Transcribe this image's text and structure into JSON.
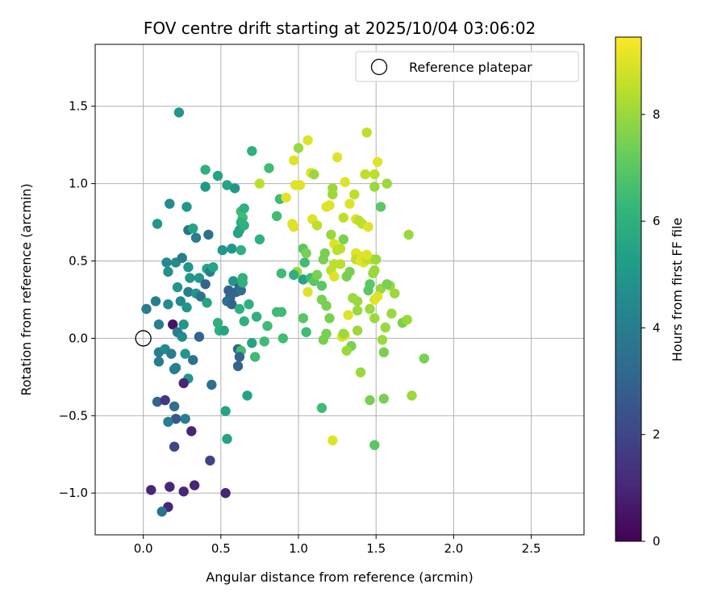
{
  "chart_data": {
    "type": "scatter",
    "title": "FOV centre drift starting at 2025/10/04 03:06:02",
    "xlabel": "Angular distance from reference (arcmin)",
    "ylabel": "Rotation from reference (arcmin)",
    "xlim": [
      -0.31,
      2.84
    ],
    "ylim": [
      -1.27,
      1.9
    ],
    "xticks": [
      0.0,
      0.5,
      1.0,
      1.5,
      2.0,
      2.5
    ],
    "xtick_labels": [
      "0.0",
      "0.5",
      "1.0",
      "1.5",
      "2.0",
      "2.5"
    ],
    "yticks": [
      -1.0,
      -0.5,
      0.0,
      0.5,
      1.0,
      1.5
    ],
    "ytick_labels": [
      "−1.0",
      "−0.5",
      "0.0",
      "0.5",
      "1.0",
      "1.5"
    ],
    "grid": true,
    "legend": {
      "label": "Reference platepar",
      "location": "top-right",
      "marker": "open-circle"
    },
    "reference_point": {
      "x": 0.0,
      "y": 0.0
    },
    "colorbar": {
      "label": "Hours from first FF file",
      "range": [
        0,
        9.45
      ],
      "ticks": [
        0,
        2,
        4,
        6,
        8
      ],
      "tick_labels": [
        "0",
        "2",
        "4",
        "6",
        "8"
      ],
      "colormap": "viridis",
      "color_stops": [
        "#440154",
        "#482878",
        "#3e4989",
        "#31688e",
        "#26828e",
        "#1f9e89",
        "#35b779",
        "#6ece58",
        "#b5de2b",
        "#fde725"
      ]
    },
    "series": [
      {
        "name": "Hours from first FF file",
        "points": [
          [
            0.23,
            1.46,
            5.0
          ],
          [
            0.09,
            0.74,
            5.0
          ],
          [
            0.17,
            0.87,
            4.5
          ],
          [
            0.28,
            0.85,
            5.0
          ],
          [
            0.29,
            0.7,
            3.5
          ],
          [
            0.32,
            0.71,
            5.5
          ],
          [
            0.34,
            0.65,
            4.0
          ],
          [
            0.15,
            0.49,
            4.5
          ],
          [
            0.16,
            0.43,
            4.8
          ],
          [
            0.21,
            0.49,
            4.5
          ],
          [
            0.25,
            0.52,
            4.0
          ],
          [
            0.29,
            0.46,
            5.0
          ],
          [
            0.22,
            0.33,
            5.0
          ],
          [
            0.3,
            0.39,
            5.0
          ],
          [
            0.36,
            0.39,
            5.0
          ],
          [
            0.4,
            0.35,
            3.0
          ],
          [
            0.41,
            0.45,
            5.5
          ],
          [
            0.43,
            0.43,
            4.0
          ],
          [
            0.45,
            0.46,
            5.5
          ],
          [
            0.08,
            0.24,
            4.0
          ],
          [
            0.16,
            0.22,
            4.5
          ],
          [
            0.24,
            0.24,
            4.5
          ],
          [
            0.28,
            0.2,
            5.0
          ],
          [
            0.29,
            0.3,
            4.0
          ],
          [
            0.34,
            0.29,
            5.0
          ],
          [
            0.37,
            0.27,
            3.5
          ],
          [
            0.41,
            0.23,
            5.5
          ],
          [
            0.02,
            0.19,
            4.0
          ],
          [
            0.1,
            0.09,
            4.0
          ],
          [
            0.19,
            0.09,
            0.5
          ],
          [
            0.22,
            0.04,
            5.5
          ],
          [
            0.26,
            0.09,
            5.0
          ],
          [
            0.22,
            0.04,
            4.0
          ],
          [
            0.36,
            0.01,
            3.0
          ],
          [
            0.25,
            0.01,
            4.5
          ],
          [
            0.1,
            -0.09,
            4.0
          ],
          [
            0.14,
            -0.07,
            4.5
          ],
          [
            0.18,
            -0.1,
            4.0
          ],
          [
            0.21,
            -0.19,
            4.5
          ],
          [
            0.1,
            -0.15,
            4.0
          ],
          [
            0.2,
            -0.2,
            4.0
          ],
          [
            0.27,
            -0.1,
            5.0
          ],
          [
            0.29,
            -0.26,
            5.0
          ],
          [
            0.32,
            -0.14,
            3.5
          ],
          [
            0.26,
            -0.29,
            1.0
          ],
          [
            0.44,
            -0.3,
            3.5
          ],
          [
            0.09,
            -0.41,
            3.0
          ],
          [
            0.14,
            -0.4,
            1.5
          ],
          [
            0.2,
            -0.44,
            3.5
          ],
          [
            0.21,
            -0.52,
            2.5
          ],
          [
            0.16,
            -0.54,
            4.0
          ],
          [
            0.27,
            -0.52,
            4.0
          ],
          [
            0.31,
            -0.6,
            1.0
          ],
          [
            0.2,
            -0.7,
            2.0
          ],
          [
            0.43,
            -0.79,
            2.0
          ],
          [
            0.05,
            -0.98,
            1.0
          ],
          [
            0.17,
            -0.96,
            1.0
          ],
          [
            0.26,
            -0.99,
            1.0
          ],
          [
            0.33,
            -0.95,
            1.0
          ],
          [
            0.16,
            -1.09,
            1.0
          ],
          [
            0.12,
            -1.12,
            3.5
          ],
          [
            0.53,
            -1.0,
            1.0
          ],
          [
            0.4,
            1.09,
            6.0
          ],
          [
            0.4,
            0.98,
            5.0
          ],
          [
            0.48,
            1.05,
            5.5
          ],
          [
            0.54,
            0.99,
            5.5
          ],
          [
            0.59,
            0.97,
            5.0
          ],
          [
            0.42,
            0.67,
            3.5
          ],
          [
            0.51,
            0.57,
            5.0
          ],
          [
            0.57,
            0.58,
            5.0
          ],
          [
            0.58,
            0.37,
            5.0
          ],
          [
            0.62,
            0.33,
            3.0
          ],
          [
            0.55,
            0.31,
            3.0
          ],
          [
            0.56,
            0.26,
            5.0
          ],
          [
            0.56,
            0.27,
            3.0
          ],
          [
            0.6,
            0.3,
            3.0
          ],
          [
            0.54,
            0.24,
            3.5
          ],
          [
            0.57,
            0.22,
            3.0
          ],
          [
            0.63,
            0.82,
            6.5
          ],
          [
            0.65,
            0.84,
            6.0
          ],
          [
            0.64,
            0.78,
            6.5
          ],
          [
            0.63,
            0.75,
            6.0
          ],
          [
            0.62,
            0.7,
            5.5
          ],
          [
            0.61,
            0.68,
            5.5
          ],
          [
            0.65,
            0.73,
            6.0
          ],
          [
            0.63,
            0.57,
            6.0
          ],
          [
            0.63,
            0.31,
            3.5
          ],
          [
            0.64,
            0.36,
            6.0
          ],
          [
            0.64,
            0.39,
            6.0
          ],
          [
            0.62,
            0.19,
            6.0
          ],
          [
            0.68,
            0.22,
            6.0
          ],
          [
            0.65,
            0.11,
            6.0
          ],
          [
            0.73,
            0.14,
            6.0
          ],
          [
            0.48,
            0.1,
            6.0
          ],
          [
            0.49,
            0.05,
            6.0
          ],
          [
            0.52,
            0.05,
            5.5
          ],
          [
            0.61,
            -0.07,
            3.0
          ],
          [
            0.63,
            -0.08,
            6.5
          ],
          [
            0.61,
            -0.18,
            3.0
          ],
          [
            0.62,
            -0.12,
            3.0
          ],
          [
            0.7,
            -0.03,
            5.5
          ],
          [
            0.72,
            -0.12,
            6.5
          ],
          [
            0.78,
            -0.02,
            6.5
          ],
          [
            0.8,
            0.08,
            6.5
          ],
          [
            0.86,
            0.17,
            6.5
          ],
          [
            0.9,
            0.0,
            6.5
          ],
          [
            0.89,
            0.17,
            6.5
          ],
          [
            0.53,
            -0.47,
            5.5
          ],
          [
            0.54,
            -0.65,
            5.5
          ],
          [
            0.67,
            -0.37,
            5.5
          ],
          [
            0.7,
            1.21,
            6.0
          ],
          [
            0.75,
            1.0,
            8.5
          ],
          [
            0.75,
            0.64,
            6.0
          ],
          [
            0.81,
            1.1,
            6.5
          ],
          [
            0.86,
            0.79,
            6.5
          ],
          [
            0.88,
            0.9,
            6.5
          ],
          [
            0.89,
            0.42,
            6.5
          ],
          [
            0.92,
            0.91,
            9.0
          ],
          [
            0.96,
            0.74,
            9.0
          ],
          [
            0.97,
            0.72,
            9.0
          ],
          [
            0.98,
            0.99,
            9.0
          ],
          [
            0.99,
            0.43,
            8.0
          ],
          [
            0.97,
            0.41,
            6.0
          ],
          [
            0.97,
            1.15,
            9.0
          ],
          [
            1.0,
            1.23,
            8.0
          ],
          [
            1.01,
            0.99,
            9.0
          ],
          [
            1.04,
            0.49,
            6.5
          ],
          [
            1.03,
            0.58,
            7.0
          ],
          [
            1.03,
            0.38,
            5.5
          ],
          [
            1.05,
            0.55,
            7.5
          ],
          [
            1.06,
            1.28,
            9.0
          ],
          [
            1.08,
            1.07,
            9.0
          ],
          [
            1.1,
            1.06,
            8.0
          ],
          [
            1.09,
            0.77,
            9.0
          ],
          [
            1.12,
            0.73,
            8.5
          ],
          [
            1.06,
            0.3,
            9.0
          ],
          [
            1.08,
            0.39,
            6.5
          ],
          [
            1.1,
            0.37,
            7.0
          ],
          [
            1.12,
            0.41,
            7.5
          ],
          [
            1.15,
            0.34,
            7.0
          ],
          [
            1.16,
            0.51,
            7.5
          ],
          [
            1.17,
            0.55,
            7.5
          ],
          [
            1.03,
            0.13,
            7.0
          ],
          [
            1.05,
            0.04,
            6.5
          ],
          [
            1.15,
            0.25,
            7.5
          ],
          [
            1.18,
            0.21,
            7.5
          ],
          [
            1.16,
            -0.01,
            7.5
          ],
          [
            1.18,
            0.03,
            7.5
          ],
          [
            1.2,
            0.13,
            7.5
          ],
          [
            1.15,
            -0.45,
            6.5
          ],
          [
            1.22,
            -0.66,
            9.0
          ],
          [
            1.18,
            0.85,
            9.0
          ],
          [
            1.2,
            0.86,
            9.0
          ],
          [
            1.22,
            0.97,
            8.0
          ],
          [
            1.22,
            0.93,
            8.0
          ],
          [
            1.25,
            1.17,
            9.0
          ],
          [
            1.3,
            1.01,
            9.0
          ],
          [
            1.21,
            0.67,
            8.0
          ],
          [
            1.23,
            0.61,
            9.0
          ],
          [
            1.25,
            0.57,
            8.5
          ],
          [
            1.27,
            0.58,
            8.5
          ],
          [
            1.29,
            0.64,
            7.5
          ],
          [
            1.21,
            0.44,
            8.5
          ],
          [
            1.23,
            0.48,
            8.5
          ],
          [
            1.23,
            0.4,
            9.0
          ],
          [
            1.27,
            0.48,
            8.5
          ],
          [
            1.29,
            0.78,
            8.5
          ],
          [
            1.33,
            0.87,
            9.0
          ],
          [
            1.36,
            0.93,
            8.5
          ],
          [
            1.37,
            0.77,
            9.0
          ],
          [
            1.39,
            0.76,
            8.5
          ],
          [
            1.41,
            0.74,
            8.5
          ],
          [
            1.45,
            0.72,
            9.0
          ],
          [
            1.37,
            0.55,
            9.0
          ],
          [
            1.37,
            0.51,
            8.5
          ],
          [
            1.4,
            0.5,
            9.0
          ],
          [
            1.41,
            0.53,
            9.0
          ],
          [
            1.42,
            0.49,
            9.0
          ],
          [
            1.44,
            0.51,
            8.5
          ],
          [
            1.47,
            0.51,
            8.5
          ],
          [
            1.5,
            0.51,
            8.0
          ],
          [
            1.31,
            0.4,
            7.5
          ],
          [
            1.33,
            0.43,
            7.5
          ],
          [
            1.35,
            0.26,
            8.0
          ],
          [
            1.38,
            0.18,
            8.0
          ],
          [
            1.32,
            0.15,
            9.0
          ],
          [
            1.34,
            -0.05,
            7.5
          ],
          [
            1.3,
            0.02,
            9.0
          ],
          [
            1.28,
            0.01,
            9.0
          ],
          [
            1.29,
            0.03,
            8.0
          ],
          [
            1.31,
            -0.08,
            8.0
          ],
          [
            1.38,
            0.05,
            8.0
          ],
          [
            1.38,
            0.24,
            8.0
          ],
          [
            1.43,
            1.06,
            8.5
          ],
          [
            1.44,
            1.33,
            8.5
          ],
          [
            1.49,
            1.06,
            8.5
          ],
          [
            1.51,
            1.14,
            9.0
          ],
          [
            1.49,
            0.98,
            8.0
          ],
          [
            1.53,
            0.85,
            7.0
          ],
          [
            1.44,
            0.54,
            9.0
          ],
          [
            1.49,
            0.44,
            8.0
          ],
          [
            1.53,
            0.32,
            8.0
          ],
          [
            1.51,
            0.27,
            9.0
          ],
          [
            1.49,
            0.25,
            9.0
          ],
          [
            1.46,
            0.35,
            7.0
          ],
          [
            1.46,
            0.19,
            8.0
          ],
          [
            1.49,
            0.13,
            8.0
          ],
          [
            1.4,
            -0.22,
            8.0
          ],
          [
            1.46,
            -0.4,
            7.5
          ],
          [
            1.49,
            -0.69,
            7.0
          ],
          [
            1.55,
            -0.39,
            7.5
          ],
          [
            1.55,
            -0.09,
            7.5
          ],
          [
            1.54,
            -0.01,
            8.0
          ],
          [
            1.56,
            0.07,
            8.0
          ],
          [
            1.57,
            1.0,
            8.0
          ],
          [
            1.59,
            0.34,
            8.0
          ],
          [
            1.62,
            0.29,
            8.0
          ],
          [
            1.6,
            0.16,
            8.0
          ],
          [
            1.67,
            0.1,
            7.5
          ],
          [
            1.7,
            0.12,
            8.0
          ],
          [
            1.71,
            0.67,
            8.0
          ],
          [
            1.73,
            -0.37,
            8.0
          ],
          [
            1.81,
            -0.13,
            7.5
          ],
          [
            1.57,
            0.35,
            7.5
          ],
          [
            1.45,
            0.31,
            7.0
          ],
          [
            1.48,
            0.42,
            8.0
          ]
        ]
      }
    ]
  }
}
